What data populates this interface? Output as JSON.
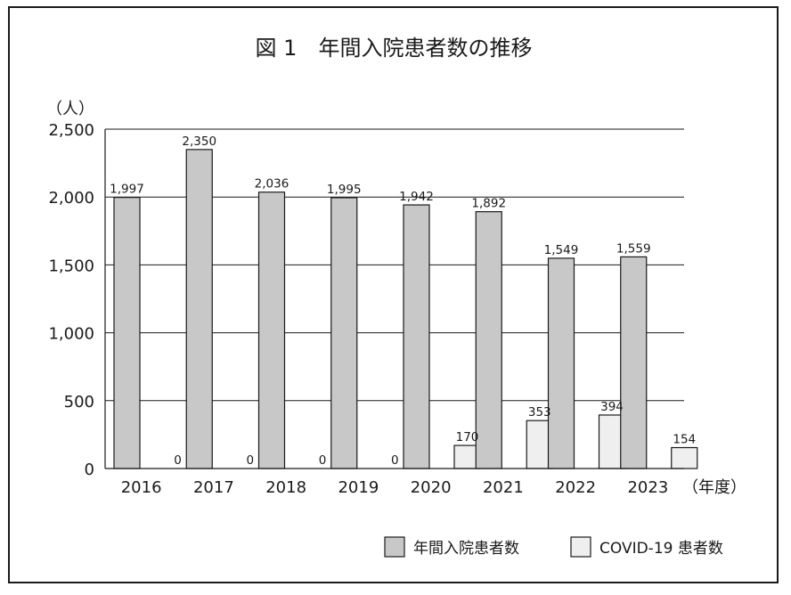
{
  "chart_data": {
    "type": "bar",
    "title": "図 1　年間入院患者数の推移",
    "ylabel": "（人）",
    "xlabel": "（年度）",
    "ylim": [
      0,
      2500
    ],
    "yticks": [
      0,
      500,
      1000,
      1500,
      2000,
      2500
    ],
    "ytick_labels": [
      "0",
      "500",
      "1,000",
      "1,500",
      "2,000",
      "2,500"
    ],
    "grid": true,
    "legend_position": "bottom-right",
    "categories": [
      "2016",
      "2017",
      "2018",
      "2019",
      "2020",
      "2021",
      "2022",
      "2023"
    ],
    "series": [
      {
        "name": "年間入院患者数",
        "color": "#c8c8c8",
        "values": [
          1997,
          2350,
          2036,
          1995,
          1942,
          1892,
          1549,
          1559
        ],
        "labels": [
          "1,997",
          "2,350",
          "2,036",
          "1,995",
          "1,942",
          "1,892",
          "1,549",
          "1,559"
        ]
      },
      {
        "name": "COVID-19 患者数",
        "color": "#efefef",
        "values": [
          0,
          0,
          0,
          0,
          170,
          353,
          394,
          154
        ],
        "labels": [
          "0",
          "0",
          "0",
          "0",
          "170",
          "353",
          "394",
          "154"
        ]
      }
    ]
  }
}
